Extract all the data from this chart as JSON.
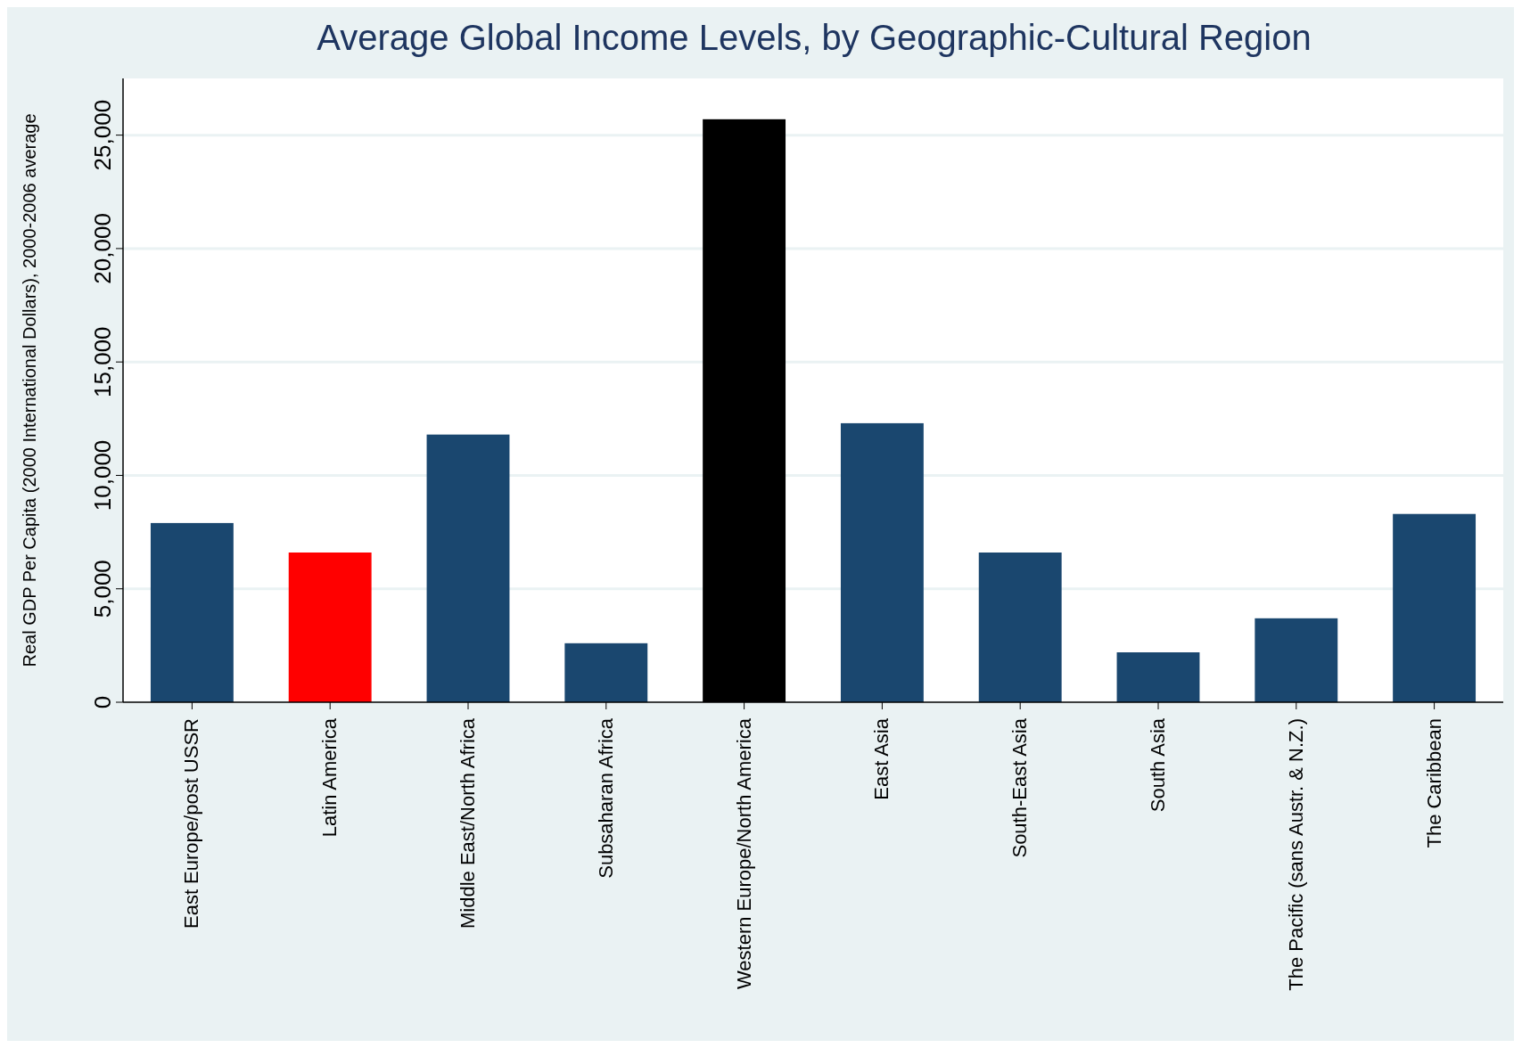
{
  "chart_data": {
    "type": "bar",
    "title": "Average Global Income Levels, by Geographic-Cultural Region",
    "ylabel": "Real GDP Per Capita (2000 International Dollars), 2000-2006 average",
    "categories": [
      "East Europe/post USSR",
      "Latin America",
      "Middle East/North Africa",
      "Subsaharan Africa",
      "Western Europe/North America",
      "East Asia",
      "South-East Asia",
      "South Asia",
      "The Pacific (sans Austr. & N.Z.)",
      "The Caribbean"
    ],
    "values": [
      7900,
      6600,
      11800,
      2600,
      25700,
      12300,
      6600,
      2200,
      3700,
      8300
    ],
    "colors": [
      "#1a476f",
      "#ff0000",
      "#1a476f",
      "#1a476f",
      "#000000",
      "#1a476f",
      "#1a476f",
      "#1a476f",
      "#1a476f",
      "#1a476f"
    ],
    "ylim": [
      0,
      27500
    ],
    "yticks": [
      {
        "value": 0,
        "label": "0"
      },
      {
        "value": 5000,
        "label": "5,000"
      },
      {
        "value": 10000,
        "label": "10,000"
      },
      {
        "value": 15000,
        "label": "15,000"
      },
      {
        "value": 20000,
        "label": "20,000"
      },
      {
        "value": 25000,
        "label": "25,000"
      }
    ],
    "grid": "y"
  }
}
